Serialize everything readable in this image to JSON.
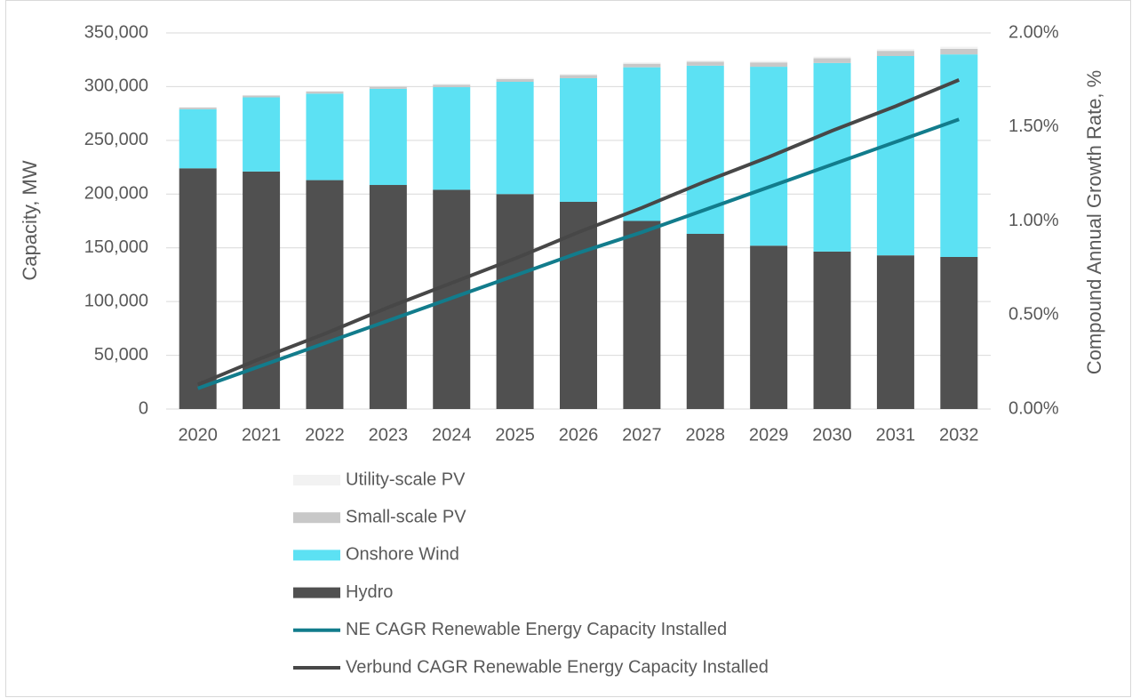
{
  "chart_data": {
    "type": "bar",
    "categories": [
      "2020",
      "2021",
      "2022",
      "2023",
      "2024",
      "2025",
      "2026",
      "2027",
      "2028",
      "2029",
      "2030",
      "2031",
      "2032"
    ],
    "series": [
      {
        "name": "Utility-scale PV",
        "color": "#f2f2f2",
        "values": [
          500,
          600,
          700,
          800,
          900,
          1000,
          1100,
          1200,
          1300,
          1400,
          1500,
          1700,
          1900
        ]
      },
      {
        "name": "Small-scale PV",
        "color": "#c8c8c8",
        "values": [
          1500,
          1700,
          1900,
          2100,
          2300,
          2600,
          2900,
          3300,
          3600,
          4000,
          4400,
          4800,
          5200
        ]
      },
      {
        "name": "Onshore Wind",
        "color": "#5ce1f3",
        "values": [
          55000,
          69000,
          80500,
          89500,
          95500,
          104500,
          115000,
          143000,
          156500,
          166500,
          175500,
          185500,
          188500
        ]
      },
      {
        "name": "Hydro",
        "color": "#505050",
        "values": [
          224000,
          221000,
          213000,
          208500,
          204000,
          200000,
          192800,
          175000,
          163000,
          152000,
          146500,
          143000,
          141500
        ]
      },
      {
        "name": "NE CAGR Renewable Energy Capacity Installed",
        "color": "#127c8c",
        "type": "line",
        "axis": "y2",
        "values": [
          0.11,
          0.23,
          0.35,
          0.47,
          0.59,
          0.71,
          0.83,
          0.94,
          1.06,
          1.18,
          1.3,
          1.42,
          1.54
        ]
      },
      {
        "name": "Verbund CAGR Renewable Energy Capacity Installed",
        "color": "#474747",
        "type": "line",
        "axis": "y2",
        "values": [
          0.13,
          0.27,
          0.4,
          0.54,
          0.67,
          0.8,
          0.94,
          1.07,
          1.21,
          1.34,
          1.48,
          1.61,
          1.75
        ]
      }
    ],
    "y_label": "Capacity, MW",
    "y2_label": "Compound Annual Growth Rate, %",
    "ylim": [
      0,
      350000
    ],
    "yticks": [
      0,
      {
        "value": 50000,
        "label": "50,000"
      },
      {
        "value": 100000,
        "label": "100,000"
      },
      {
        "value": 150000,
        "label": "150,000"
      },
      {
        "value": 200000,
        "label": "200,000"
      },
      {
        "value": 250000,
        "label": "250,000"
      },
      {
        "value": 300000,
        "label": "300,000"
      },
      {
        "value": 350000,
        "label": "350,000"
      }
    ],
    "y2lim": [
      0,
      2
    ],
    "y2ticks": [
      {
        "value": 0,
        "label": "0.00%"
      },
      {
        "value": 0.5,
        "label": "0.50%"
      },
      {
        "value": 1,
        "label": "1.00%"
      },
      {
        "value": 1.5,
        "label": "1.50%"
      },
      {
        "value": 2,
        "label": "2.00%"
      }
    ],
    "grid": true,
    "legend": "bottom",
    "stacked": true
  }
}
